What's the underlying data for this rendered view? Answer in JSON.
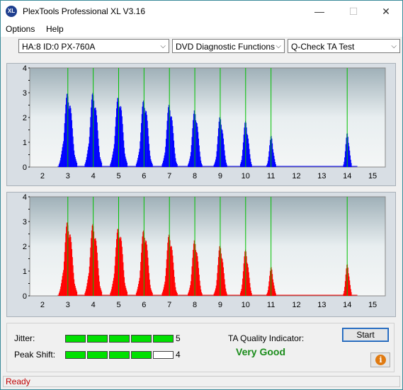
{
  "window": {
    "title": "PlexTools Professional XL V3.16",
    "icon_text": "XL",
    "minimize_glyph": "—",
    "maximize_glyph": "☐",
    "close_glyph": "✕"
  },
  "menu": {
    "options": "Options",
    "help": "Help"
  },
  "toolbar": {
    "drive": "HA:8 ID:0  PX-760A",
    "function": "DVD Diagnostic Functions",
    "test": "Q-Check TA Test"
  },
  "colors": {
    "top_bars": "#0000ff",
    "bottom_bars": "#ff0000",
    "gridline": "#00c000",
    "plot_background": "#d8dee4"
  },
  "chart_data": [
    {
      "type": "bar",
      "panel": "top",
      "xlim": [
        1.5,
        15.5
      ],
      "ylim": [
        0,
        4
      ],
      "x_ticks": [
        2,
        3,
        4,
        5,
        6,
        7,
        8,
        9,
        10,
        11,
        12,
        13,
        14,
        15
      ],
      "y_ticks": [
        0,
        0.5,
        1,
        1.5,
        2,
        2.5,
        3,
        3.5,
        4
      ],
      "grid_x": [
        3,
        4,
        5,
        6,
        7,
        8,
        9,
        10,
        11,
        14
      ],
      "peaks": [
        {
          "center": 3.0,
          "height": 3.2,
          "width": 0.36
        },
        {
          "center": 4.0,
          "height": 3.2,
          "width": 0.34
        },
        {
          "center": 5.0,
          "height": 3.1,
          "width": 0.34
        },
        {
          "center": 6.0,
          "height": 2.95,
          "width": 0.32
        },
        {
          "center": 7.0,
          "height": 2.75,
          "width": 0.3
        },
        {
          "center": 8.0,
          "height": 2.5,
          "width": 0.28
        },
        {
          "center": 9.0,
          "height": 2.2,
          "width": 0.26
        },
        {
          "center": 10.0,
          "height": 2.0,
          "width": 0.24
        },
        {
          "center": 11.0,
          "height": 1.3,
          "width": 0.2
        },
        {
          "center": 14.0,
          "height": 1.5,
          "width": 0.18
        }
      ]
    },
    {
      "type": "bar",
      "panel": "bottom",
      "xlim": [
        1.5,
        15.5
      ],
      "ylim": [
        0,
        4
      ],
      "x_ticks": [
        2,
        3,
        4,
        5,
        6,
        7,
        8,
        9,
        10,
        11,
        12,
        13,
        14,
        15
      ],
      "y_ticks": [
        0,
        0.5,
        1,
        1.5,
        2,
        2.5,
        3,
        3.5,
        4
      ],
      "grid_x": [
        3,
        4,
        5,
        6,
        7,
        8,
        9,
        10,
        11,
        14
      ],
      "peaks": [
        {
          "center": 3.0,
          "height": 3.2,
          "width": 0.36
        },
        {
          "center": 4.0,
          "height": 3.1,
          "width": 0.34
        },
        {
          "center": 5.0,
          "height": 3.0,
          "width": 0.34
        },
        {
          "center": 6.0,
          "height": 2.9,
          "width": 0.32
        },
        {
          "center": 7.0,
          "height": 2.7,
          "width": 0.3
        },
        {
          "center": 8.0,
          "height": 2.45,
          "width": 0.28
        },
        {
          "center": 9.0,
          "height": 2.2,
          "width": 0.26
        },
        {
          "center": 10.0,
          "height": 2.0,
          "width": 0.24
        },
        {
          "center": 11.0,
          "height": 1.2,
          "width": 0.2
        },
        {
          "center": 14.0,
          "height": 1.4,
          "width": 0.18
        }
      ]
    }
  ],
  "metrics": {
    "jitter_label": "Jitter:",
    "jitter_value": "5",
    "jitter_level": 5,
    "peak_shift_label": "Peak Shift:",
    "peak_shift_value": "4",
    "peak_shift_level": 4,
    "segments_total": 5
  },
  "quality": {
    "label": "TA Quality Indicator:",
    "value": "Very Good"
  },
  "buttons": {
    "start": "Start",
    "info_glyph": "i"
  },
  "status": {
    "text": "Ready"
  }
}
